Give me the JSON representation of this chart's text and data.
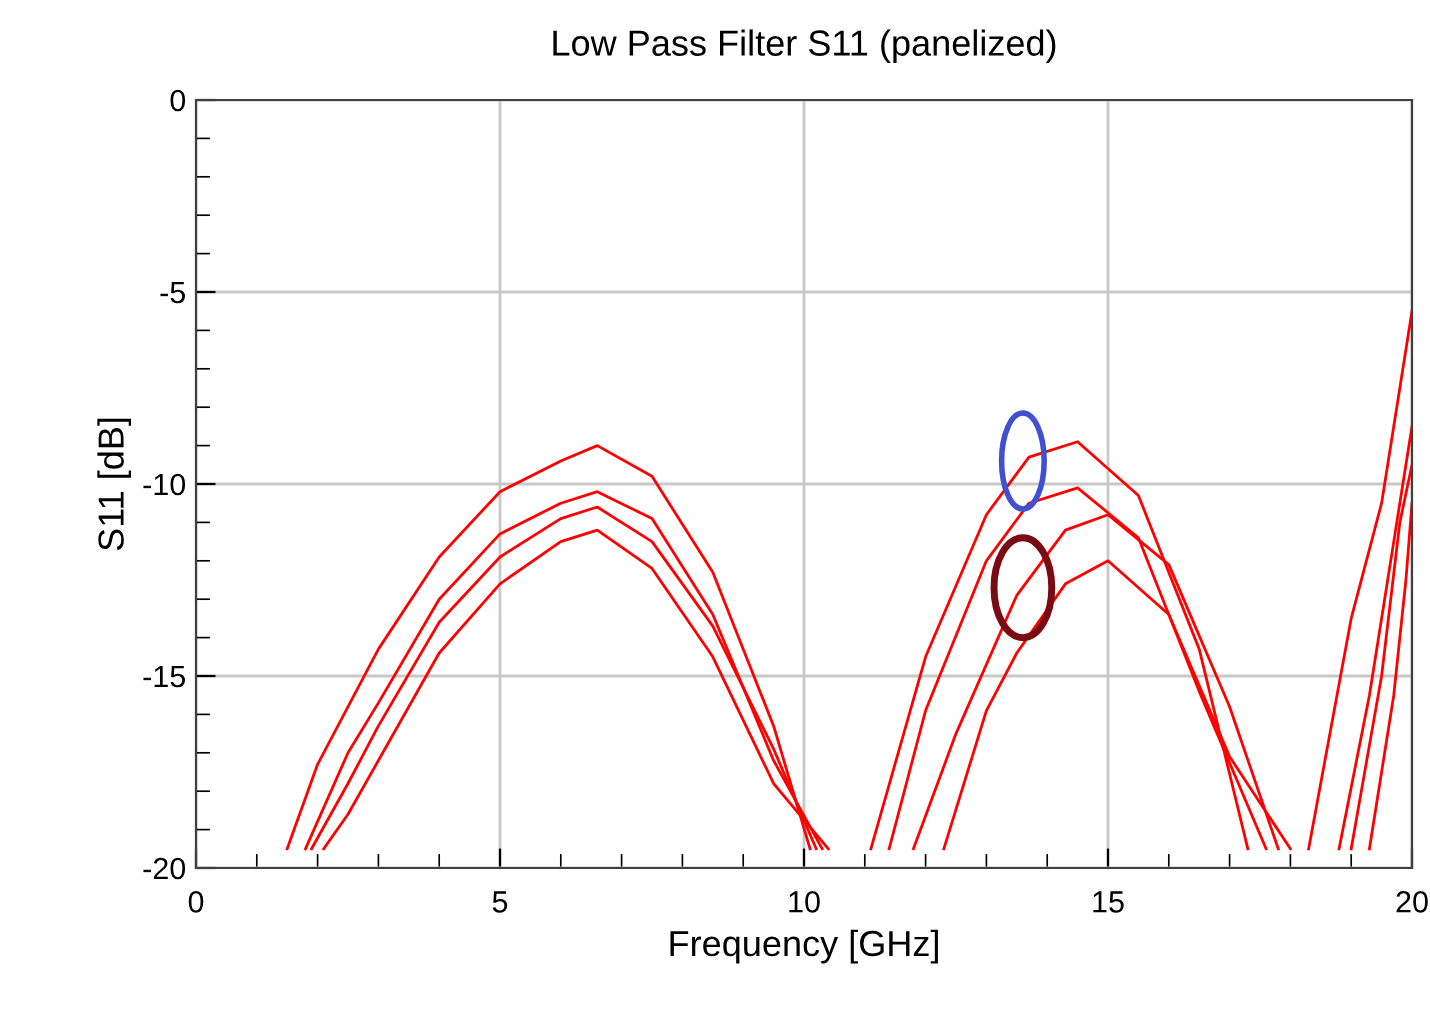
{
  "chart_data": {
    "type": "line",
    "title": "Low Pass Filter S11 (panelized)",
    "xlabel": "Frequency [GHz]",
    "ylabel": "S11 [dB]",
    "xlim": [
      0,
      20
    ],
    "ylim": [
      -20,
      0
    ],
    "grid": true,
    "line_style": "solid",
    "marker": "none",
    "xticks": [
      0,
      {
        "value": 1,
        "label": null
      },
      {
        "value": 2,
        "label": null
      },
      {
        "value": 3,
        "label": null
      },
      {
        "value": 4,
        "label": null
      },
      5,
      {
        "value": 6,
        "label": null
      },
      {
        "value": 7,
        "label": null
      },
      {
        "value": 8,
        "label": null
      },
      {
        "value": 9,
        "label": null
      },
      10,
      {
        "value": 11,
        "label": null
      },
      {
        "value": 12,
        "label": null
      },
      {
        "value": 13,
        "label": null
      },
      {
        "value": 14,
        "label": null
      },
      15,
      {
        "value": 16,
        "label": null
      },
      {
        "value": 17,
        "label": null
      },
      {
        "value": 18,
        "label": null
      },
      {
        "value": 19,
        "label": null
      },
      20
    ],
    "yticks": [
      -20,
      {
        "value": -19,
        "label": null
      },
      {
        "value": -18,
        "label": null
      },
      {
        "value": -17,
        "label": null
      },
      {
        "value": -16,
        "label": null
      },
      -15,
      {
        "value": -14,
        "label": null
      },
      {
        "value": -13,
        "label": null
      },
      {
        "value": -12,
        "label": null
      },
      {
        "value": -11,
        "label": null
      },
      -10,
      {
        "value": -9,
        "label": null
      },
      {
        "value": -8,
        "label": null
      },
      {
        "value": -7,
        "label": null
      },
      {
        "value": -6,
        "label": null
      },
      -5,
      {
        "value": -4,
        "label": null
      },
      {
        "value": -3,
        "label": null
      },
      {
        "value": -2,
        "label": null
      },
      {
        "value": -1,
        "label": null
      },
      0
    ],
    "series": [
      {
        "color": "#ff0000",
        "x": [
          1.5,
          2,
          3,
          4,
          5,
          6,
          6.6,
          7.5,
          8.5,
          9.5,
          10.1,
          null,
          11.1,
          12,
          13,
          13.7,
          14.5,
          15.5,
          16.5,
          17.3,
          null,
          18.3,
          19,
          19.5,
          20
        ],
        "values": [
          -19.5,
          -17.3,
          -14.3,
          -11.9,
          -10.2,
          -9.4,
          -9.0,
          -9.8,
          -12.3,
          -16.3,
          -19.5,
          null,
          -19.5,
          -14.5,
          -10.8,
          -9.3,
          -8.9,
          -10.3,
          -14.3,
          -19.5,
          null,
          -19.5,
          -13.5,
          -10.5,
          -5.5
        ]
      },
      {
        "color": "#ff0000",
        "x": [
          1.8,
          2.5,
          3,
          4,
          5,
          6,
          6.6,
          7.5,
          8.5,
          9.5,
          10.3,
          null,
          11.4,
          12,
          13,
          13.7,
          14.5,
          15.5,
          16.5,
          17.6,
          null,
          18.8,
          19.3,
          19.7,
          20
        ],
        "values": [
          -19.5,
          -17.0,
          -15.7,
          -13.0,
          -11.3,
          -10.5,
          -10.2,
          -10.9,
          -13.4,
          -17.2,
          -19.5,
          null,
          -19.5,
          -15.9,
          -12.0,
          -10.5,
          -10.1,
          -11.4,
          -15.4,
          -19.5,
          null,
          -19.5,
          -15.5,
          -11.5,
          -8.5
        ]
      },
      {
        "color": "#ff0000",
        "x": [
          1.9,
          2.5,
          3,
          4,
          5,
          6,
          6.6,
          7.5,
          8.5,
          9.5,
          10.2,
          null,
          11.8,
          12.5,
          13.5,
          14.3,
          15,
          16,
          17,
          17.8,
          null,
          19.0,
          19.5,
          19.8,
          20
        ],
        "values": [
          -19.5,
          -17.8,
          -16.3,
          -13.6,
          -11.9,
          -10.9,
          -10.6,
          -11.5,
          -13.7,
          -16.9,
          -19.5,
          null,
          -19.5,
          -16.5,
          -12.9,
          -11.2,
          -10.8,
          -12.1,
          -15.8,
          -19.5,
          null,
          -19.5,
          -15.0,
          -11.0,
          -9.5
        ]
      },
      {
        "color": "#ff0000",
        "x": [
          2.1,
          2.5,
          3,
          4,
          5,
          6,
          6.6,
          7.5,
          8.5,
          9.5,
          10.4,
          null,
          12.3,
          13,
          13.5,
          14.3,
          15,
          16,
          17,
          18.0,
          null,
          19.3,
          19.7,
          19.9,
          20
        ],
        "values": [
          -19.5,
          -18.6,
          -17.2,
          -14.4,
          -12.6,
          -11.5,
          -11.2,
          -12.2,
          -14.5,
          -17.8,
          -19.5,
          null,
          -19.5,
          -15.9,
          -14.4,
          -12.6,
          -12.0,
          -13.4,
          -17.1,
          -19.5,
          null,
          -19.5,
          -15.5,
          -12.5,
          -10.5
        ]
      }
    ]
  }
}
